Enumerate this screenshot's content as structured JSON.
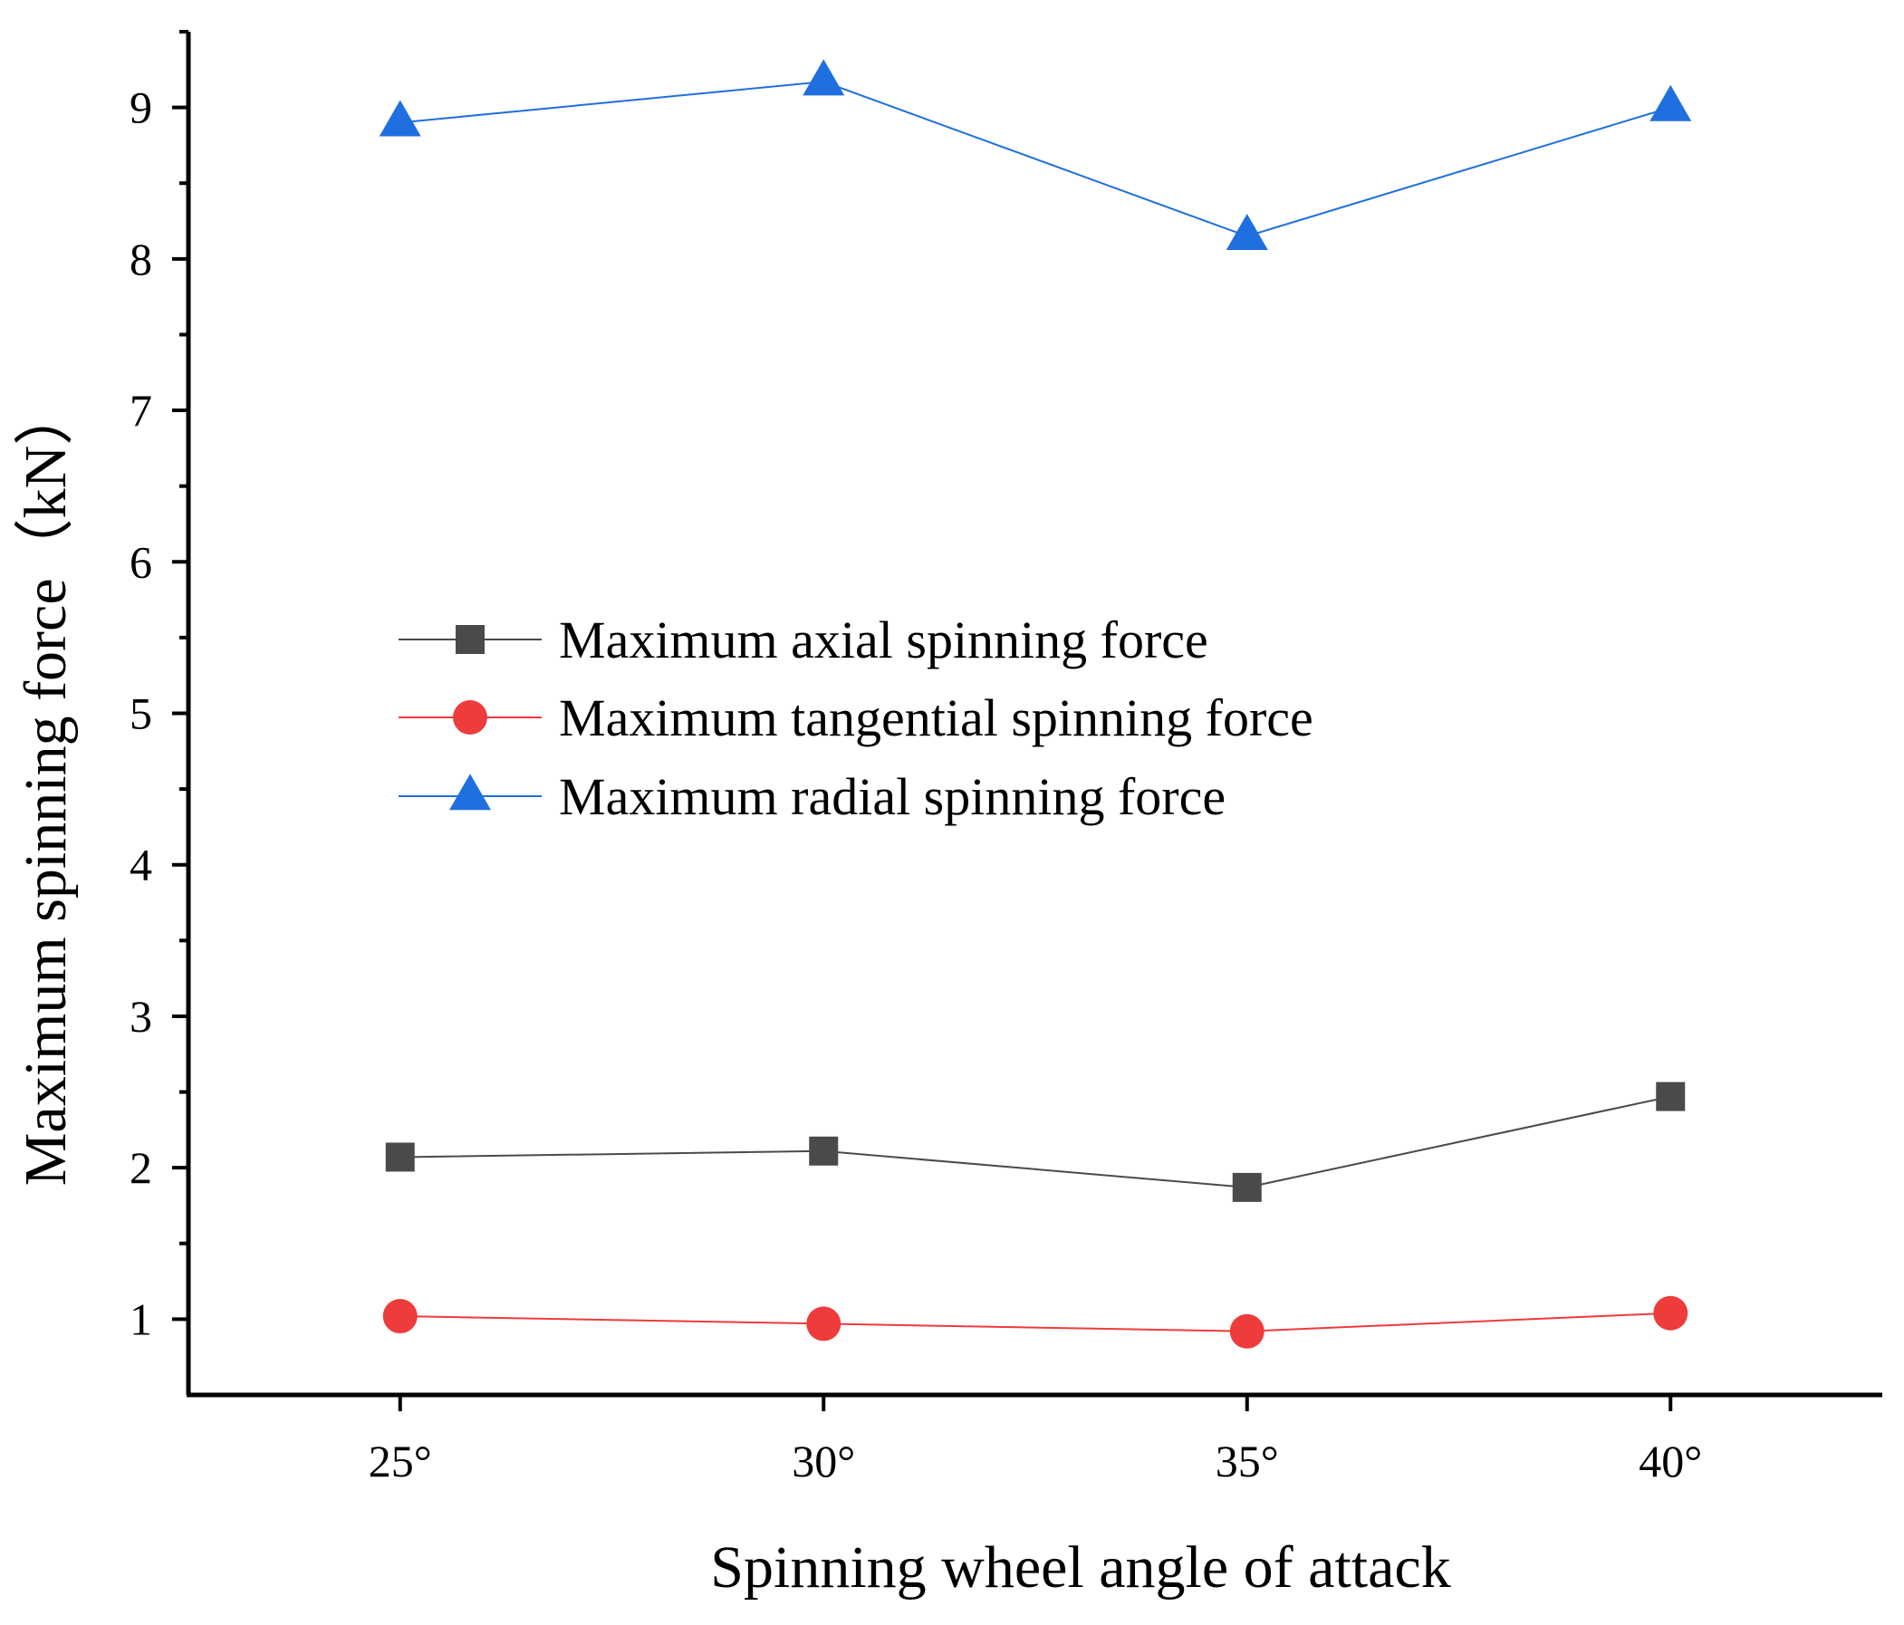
{
  "chart_data": {
    "type": "line",
    "title": "",
    "xlabel": "Spinning wheel angle of attack",
    "ylabel": "Maximum spinning force（kN）",
    "categories": [
      "25°",
      "30°",
      "35°",
      "40°"
    ],
    "x": [
      25,
      30,
      35,
      40
    ],
    "xlim": [
      22.5,
      42.5
    ],
    "ylim": [
      0.5,
      9.5
    ],
    "yticks": [
      "1",
      "2",
      "3",
      "4",
      "5",
      "6",
      "7",
      "8",
      "9"
    ],
    "grid": false,
    "legend_position": "center-left",
    "series": [
      {
        "name": "Maximum axial spinning force",
        "marker": "square",
        "color": "#4a4a4a",
        "values": [
          2.07,
          2.11,
          1.87,
          2.47
        ]
      },
      {
        "name": "Maximum tangential spinning force",
        "marker": "circle",
        "color": "#ee3b3b",
        "values": [
          1.02,
          0.97,
          0.92,
          1.04
        ]
      },
      {
        "name": "Maximum radial spinning force",
        "marker": "triangle",
        "color": "#1f6fe0",
        "values": [
          8.9,
          9.17,
          8.15,
          9.0
        ]
      }
    ]
  }
}
